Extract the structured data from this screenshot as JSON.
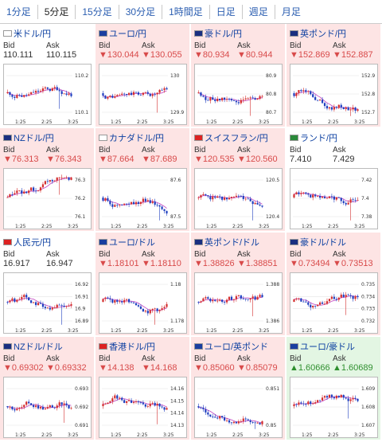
{
  "tabs": [
    {
      "label": "1分足",
      "active": false
    },
    {
      "label": "5分足",
      "active": true
    },
    {
      "label": "15分足",
      "active": false
    },
    {
      "label": "30分足",
      "active": false
    },
    {
      "label": "1時間足",
      "active": false
    },
    {
      "label": "日足",
      "active": false
    },
    {
      "label": "週足",
      "active": false
    },
    {
      "label": "月足",
      "active": false
    }
  ],
  "bid_label": "Bid",
  "ask_label": "Ask",
  "x_ticks": [
    "1:25",
    "2:25",
    "3:25"
  ],
  "cards": [
    {
      "name": "米ドル/円",
      "dir": "flat",
      "bid": "110.111",
      "ask": "110.115",
      "y_ticks": [
        "110.2",
        "110.1"
      ],
      "flag": "us-flag-icon"
    },
    {
      "name": "ユーロ/円",
      "dir": "down",
      "bid": "▼130.044",
      "ask": "▼130.055",
      "y_ticks": [
        "130",
        "129.9"
      ],
      "flag": "eu-flag-icon"
    },
    {
      "name": "豪ドル/円",
      "dir": "down",
      "bid": "▼80.934",
      "ask": "▼80.944",
      "y_ticks": [
        "80.9",
        "80.8",
        "80.7"
      ],
      "flag": "au-flag-icon"
    },
    {
      "name": "英ポンド/円",
      "dir": "down",
      "bid": "▼152.869",
      "ask": "▼152.887",
      "y_ticks": [
        "152.9",
        "152.8",
        "152.7"
      ],
      "flag": "gb-flag-icon"
    },
    {
      "name": "NZドル/円",
      "dir": "down",
      "bid": "▼76.313",
      "ask": "▼76.343",
      "y_ticks": [
        "76.3",
        "76.2",
        "76.1"
      ],
      "flag": "nz-flag-icon"
    },
    {
      "name": "カナダドル/円",
      "dir": "down",
      "bid": "▼87.664",
      "ask": "▼87.689",
      "y_ticks": [
        "87.6",
        "87.5"
      ],
      "flag": "ca-flag-icon"
    },
    {
      "name": "スイスフラン/円",
      "dir": "down",
      "bid": "▼120.535",
      "ask": "▼120.560",
      "y_ticks": [
        "120.5",
        "120.4"
      ],
      "flag": "ch-flag-icon"
    },
    {
      "name": "ランド/円",
      "dir": "flat",
      "bid": "7.410",
      "ask": "7.429",
      "y_ticks": [
        "7.42",
        "7.4",
        "7.38"
      ],
      "flag": "za-flag-icon"
    },
    {
      "name": "人民元/円",
      "dir": "flat",
      "bid": "16.917",
      "ask": "16.947",
      "y_ticks": [
        "16.92",
        "16.91",
        "16.9",
        "16.89"
      ],
      "flag": "cn-flag-icon"
    },
    {
      "name": "ユーロ/ドル",
      "dir": "down",
      "bid": "▼1.18101",
      "ask": "▼1.18110",
      "y_ticks": [
        "1.18",
        "1.178"
      ],
      "flag": "eu-flag-icon"
    },
    {
      "name": "英ポンド/ドル",
      "dir": "down",
      "bid": "▼1.38826",
      "ask": "▼1.38851",
      "y_ticks": [
        "1.388",
        "1.386"
      ],
      "flag": "gb-flag-icon"
    },
    {
      "name": "豪ドル/ドル",
      "dir": "down",
      "bid": "▼0.73494",
      "ask": "▼0.73513",
      "y_ticks": [
        "0.735",
        "0.734",
        "0.733",
        "0.732"
      ],
      "flag": "au-flag-icon"
    },
    {
      "name": "NZドル/ドル",
      "dir": "down",
      "bid": "▼0.69302",
      "ask": "▼0.69332",
      "y_ticks": [
        "0.693",
        "0.692",
        "0.691"
      ],
      "flag": "nz-flag-icon"
    },
    {
      "name": "香港ドル/円",
      "dir": "down",
      "bid": "▼14.138",
      "ask": "▼14.168",
      "y_ticks": [
        "14.16",
        "14.15",
        "14.14",
        "14.13"
      ],
      "flag": "hk-flag-icon"
    },
    {
      "name": "ユーロ/英ポンド",
      "dir": "down",
      "bid": "▼0.85060",
      "ask": "▼0.85079",
      "y_ticks": [
        "0.851",
        "0.85"
      ],
      "flag": "eu-flag-icon"
    },
    {
      "name": "ユーロ/豪ドル",
      "dir": "up",
      "bid": "▲1.60666",
      "ask": "▲1.60689",
      "y_ticks": [
        "1.609",
        "1.608",
        "1.607"
      ],
      "flag": "eu-flag-icon"
    }
  ],
  "colors": {
    "down_bg": "#fde4e4",
    "up_bg": "#e3f6e3",
    "down_text": "#d84a4a",
    "up_text": "#2f8f2f",
    "link": "#0a3ea0",
    "candle_up": "#d43030",
    "candle_down": "#2040c0",
    "ma_line": "#c040c0"
  }
}
